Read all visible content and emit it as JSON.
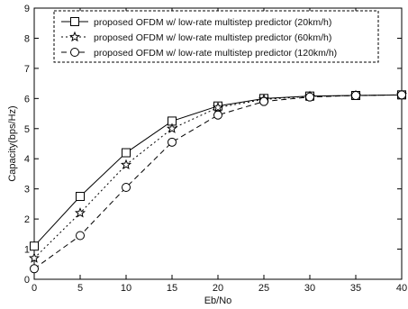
{
  "chart_data": {
    "type": "line",
    "xlabel": "Eb/No",
    "ylabel": "Capacity(bps/Hz)",
    "xlim": [
      0,
      40
    ],
    "ylim": [
      0,
      9
    ],
    "xticks": [
      "0",
      "5",
      "10",
      "15",
      "20",
      "25",
      "30",
      "35",
      "40"
    ],
    "yticks": [
      "0",
      "1",
      "2",
      "3",
      "4",
      "5",
      "6",
      "7",
      "8",
      "9"
    ],
    "grid": false,
    "legend_position": "top-left",
    "series": [
      {
        "name": "proposed OFDM w/ low-rate multistep predictor (20km/h)",
        "marker": "square",
        "line_style": "solid",
        "color": "#000000",
        "x": [
          0,
          5,
          10,
          15,
          20,
          25,
          30,
          35,
          40
        ],
        "y": [
          1.1,
          2.75,
          4.2,
          5.25,
          5.75,
          6.0,
          6.08,
          6.1,
          6.12
        ]
      },
      {
        "name": "proposed OFDM w/ low-rate multistep predictor (60km/h)",
        "marker": "star",
        "line_style": "dotted",
        "color": "#000000",
        "x": [
          0,
          5,
          10,
          15,
          20,
          25,
          30,
          35,
          40
        ],
        "y": [
          0.7,
          2.2,
          3.8,
          5.0,
          5.7,
          5.97,
          6.07,
          6.1,
          6.12
        ]
      },
      {
        "name": "proposed OFDM w/ low-rate multistep predictor (120km/h)",
        "marker": "circle",
        "line_style": "dashed",
        "color": "#000000",
        "x": [
          0,
          5,
          10,
          15,
          20,
          25,
          30,
          35,
          40
        ],
        "y": [
          0.35,
          1.45,
          3.05,
          4.55,
          5.45,
          5.9,
          6.05,
          6.1,
          6.12
        ]
      }
    ]
  }
}
